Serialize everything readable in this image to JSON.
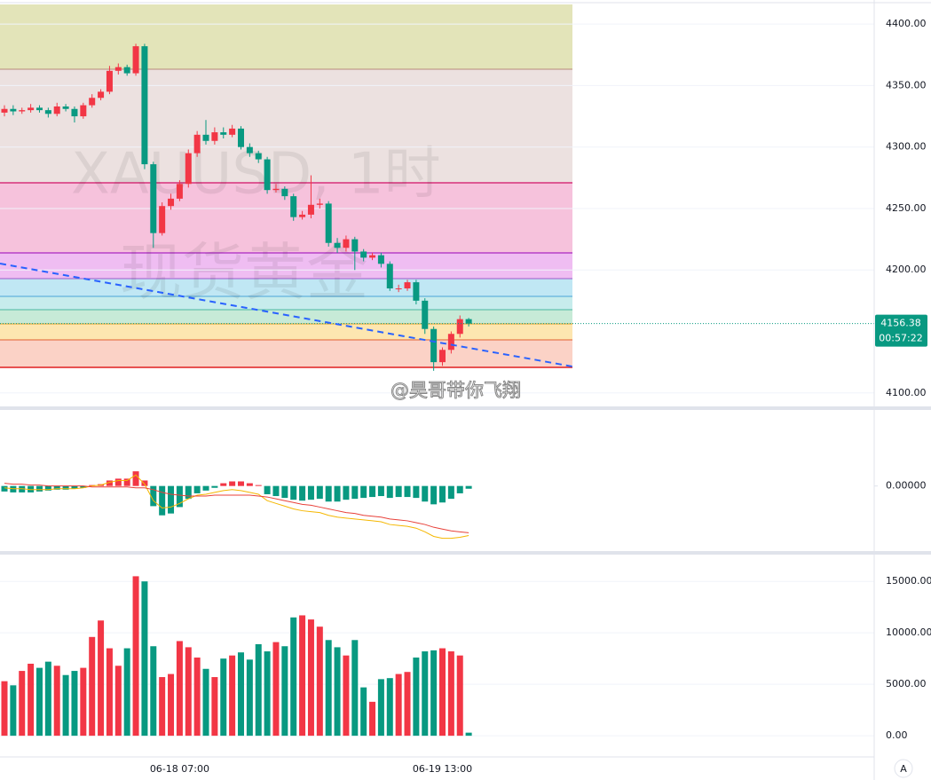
{
  "chart_data": [
    {
      "type": "candlestick",
      "watermark": [
        "XAUUSD, 1时",
        "现货黄金"
      ],
      "categories": [
        null,
        null,
        null,
        null,
        null,
        null,
        null,
        null,
        null,
        null,
        null,
        null,
        null,
        null,
        null,
        null,
        null,
        null,
        null,
        null,
        "06-18 07:00",
        null,
        null,
        null,
        null,
        null,
        null,
        null,
        null,
        null,
        null,
        null,
        null,
        null,
        null,
        null,
        null,
        null,
        null,
        null,
        null,
        null,
        null,
        null,
        null,
        null,
        null,
        null,
        null,
        null,
        "06-19 13:00",
        null,
        null,
        null
      ],
      "open": [
        4328,
        4331,
        4329,
        4330,
        4332,
        4330,
        4327,
        4333,
        4331,
        4325,
        4334,
        4340,
        4345,
        4362,
        4365,
        4360,
        4382,
        4286,
        4230,
        4252,
        4258,
        4270,
        4295,
        4310,
        4305,
        4312,
        4310,
        4315,
        4300,
        4295,
        4290,
        4265,
        4266,
        4260,
        4243,
        4245,
        4253,
        4254,
        4222,
        4218,
        4225,
        4215,
        4210,
        4212,
        4205,
        4185,
        4185,
        4190,
        4175,
        4152,
        4125,
        4135,
        4148,
        4160
      ],
      "high": [
        4334,
        4334,
        4332,
        4335,
        4334,
        4332,
        4336,
        4335,
        4333,
        4336,
        4343,
        4347,
        4366,
        4368,
        4367,
        4384,
        4384,
        4288,
        4255,
        4262,
        4273,
        4298,
        4313,
        4322,
        4316,
        4316,
        4318,
        4317,
        4303,
        4297,
        4292,
        4270,
        4268,
        4262,
        4248,
        4277,
        4258,
        4256,
        4226,
        4228,
        4227,
        4217,
        4214,
        4214,
        4207,
        4188,
        4192,
        4192,
        4177,
        4154,
        4137,
        4150,
        4163,
        4161
      ],
      "low": [
        4325,
        4326,
        4327,
        4328,
        4328,
        4324,
        4325,
        4329,
        4320,
        4323,
        4332,
        4338,
        4343,
        4359,
        4358,
        4358,
        4282,
        4218,
        4228,
        4249,
        4256,
        4267,
        4292,
        4302,
        4302,
        4307,
        4308,
        4298,
        4292,
        4287,
        4262,
        4263,
        4257,
        4240,
        4241,
        4242,
        4250,
        4219,
        4214,
        4215,
        4200,
        4207,
        4208,
        4202,
        4183,
        4182,
        4183,
        4172,
        4148,
        4118,
        4122,
        4132,
        4145,
        4154
      ],
      "close": [
        4331,
        4329,
        4330,
        4332,
        4330,
        4327,
        4333,
        4331,
        4325,
        4334,
        4340,
        4345,
        4362,
        4365,
        4360,
        4382,
        4286,
        4230,
        4252,
        4258,
        4270,
        4295,
        4310,
        4305,
        4312,
        4310,
        4315,
        4300,
        4295,
        4290,
        4265,
        4266,
        4260,
        4243,
        4245,
        4253,
        4254,
        4222,
        4218,
        4225,
        4215,
        4210,
        4212,
        4205,
        4185,
        4185,
        4190,
        4175,
        4152,
        4125,
        4135,
        4148,
        4160,
        4156.38
      ],
      "up_color": "#f23645",
      "down_color": "#089981",
      "ylim": [
        4089,
        4416
      ],
      "yticks": [
        {
          "value": 4100,
          "label": "4100.00"
        },
        {
          "value": 4200,
          "label": "4200.00"
        },
        {
          "value": 4250,
          "label": "4250.00"
        },
        {
          "value": 4300,
          "label": "4300.00"
        },
        {
          "value": 4350,
          "label": "4350.00"
        },
        {
          "value": 4400,
          "label": "4400.00"
        }
      ],
      "grid": true,
      "countdown": "00:57:22"
    },
    {
      "type": "macd",
      "histogram": [
        -0.6,
        -0.7,
        -0.7,
        -0.7,
        -0.6,
        -0.5,
        -0.4,
        -0.4,
        -0.3,
        -0.2,
        0.1,
        0.2,
        0.6,
        0.8,
        0.8,
        1.6,
        0.6,
        -2.2,
        -3.2,
        -3.0,
        -2.3,
        -1.4,
        -0.8,
        -0.5,
        -0.2,
        0.3,
        0.5,
        0.5,
        0.3,
        0.1,
        -0.9,
        -1.1,
        -1.3,
        -1.5,
        -1.6,
        -1.5,
        -1.4,
        -1.7,
        -1.7,
        -1.5,
        -1.4,
        -1.3,
        -1.2,
        -1.1,
        -1.3,
        -1.2,
        -1.2,
        -1.3,
        -1.7,
        -2.0,
        -1.8,
        -1.4,
        -0.8,
        -0.3
      ],
      "series": [
        {
          "color": "#f5b700",
          "values": [
            -0.2,
            -0.3,
            -0.3,
            -0.4,
            -0.4,
            -0.4,
            -0.3,
            -0.3,
            -0.3,
            -0.2,
            0,
            0.1,
            0.4,
            0.6,
            0.6,
            1.2,
            0.2,
            -1.6,
            -2.4,
            -2.3,
            -1.9,
            -1.4,
            -1.0,
            -0.9,
            -0.7,
            -0.5,
            -0.4,
            -0.5,
            -0.7,
            -0.9,
            -1.6,
            -1.9,
            -2.2,
            -2.5,
            -2.7,
            -2.8,
            -2.9,
            -3.2,
            -3.4,
            -3.5,
            -3.6,
            -3.7,
            -3.8,
            -3.9,
            -4.2,
            -4.3,
            -4.4,
            -4.6,
            -5.0,
            -5.5,
            -5.7,
            -5.7,
            -5.6,
            -5.4
          ]
        },
        {
          "color": "#e8413a",
          "values": [
            0.3,
            0.2,
            0.2,
            0.1,
            0.1,
            0,
            0,
            0,
            0,
            0,
            -0.1,
            -0.1,
            -0.1,
            -0.1,
            -0.1,
            -0.2,
            -0.2,
            -0.4,
            -0.7,
            -0.9,
            -1.0,
            -1.1,
            -1.1,
            -1.1,
            -1.0,
            -1.0,
            -1.0,
            -1.0,
            -1.0,
            -1.1,
            -1.2,
            -1.4,
            -1.6,
            -1.8,
            -2.0,
            -2.1,
            -2.3,
            -2.5,
            -2.7,
            -2.9,
            -3.0,
            -3.2,
            -3.3,
            -3.4,
            -3.6,
            -3.7,
            -3.8,
            -4.0,
            -4.2,
            -4.5,
            -4.7,
            -4.9,
            -5.0,
            -5.1
          ]
        }
      ],
      "ylim": [
        -7,
        8
      ],
      "yticks": [
        {
          "value": 0,
          "label": "0.00000"
        }
      ]
    },
    {
      "type": "volume",
      "values": [
        5300,
        4900,
        6300,
        7000,
        6600,
        7200,
        6800,
        5900,
        6300,
        6600,
        9600,
        11200,
        8500,
        6800,
        8500,
        15500,
        15000,
        8700,
        5700,
        6000,
        9200,
        8600,
        7600,
        6500,
        5700,
        7500,
        7800,
        8100,
        7400,
        8900,
        8200,
        9100,
        8700,
        11500,
        11700,
        11300,
        10600,
        9300,
        8600,
        7800,
        9300,
        4700,
        3300,
        5500,
        5600,
        6000,
        6200,
        7600,
        8200,
        8300,
        8500,
        8200,
        7800,
        300
      ],
      "ylim": [
        -1800,
        17000
      ],
      "yticks": [
        {
          "value": 0,
          "label": "0.00"
        },
        {
          "value": 5000,
          "label": "5000.00"
        },
        {
          "value": 10000,
          "label": "10000.00"
        },
        {
          "value": 15000,
          "label": "15000.00"
        }
      ],
      "grid": true
    }
  ],
  "author_watermark": "@昊哥带你飞翔",
  "scale_button": "A"
}
